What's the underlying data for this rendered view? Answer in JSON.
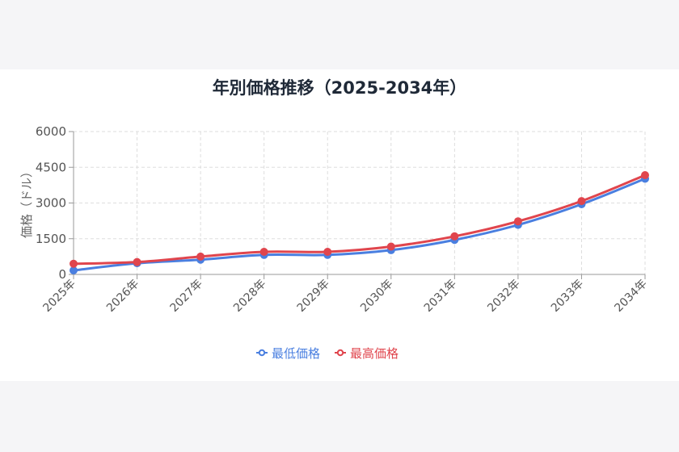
{
  "chart_data": {
    "type": "line",
    "title": "年別価格推移（2025-2034年）",
    "ylabel": "価格（ドル）",
    "xlabel": "",
    "categories": [
      "2025年",
      "2026年",
      "2027年",
      "2028年",
      "2029年",
      "2030年",
      "2031年",
      "2032年",
      "2033年",
      "2034年"
    ],
    "y_ticks": [
      "0",
      "1500",
      "3000",
      "4500",
      "6000"
    ],
    "ylim": [
      0,
      6000
    ],
    "grid": true,
    "legend_position": "bottom",
    "series": [
      {
        "name": "最低価格",
        "color": "#4a7fe0",
        "values": [
          170,
          470,
          620,
          820,
          820,
          1020,
          1450,
          2080,
          2950,
          4020
        ]
      },
      {
        "name": "最高価格",
        "color": "#e0454d",
        "values": [
          450,
          520,
          750,
          950,
          950,
          1170,
          1600,
          2230,
          3080,
          4170
        ]
      }
    ]
  }
}
